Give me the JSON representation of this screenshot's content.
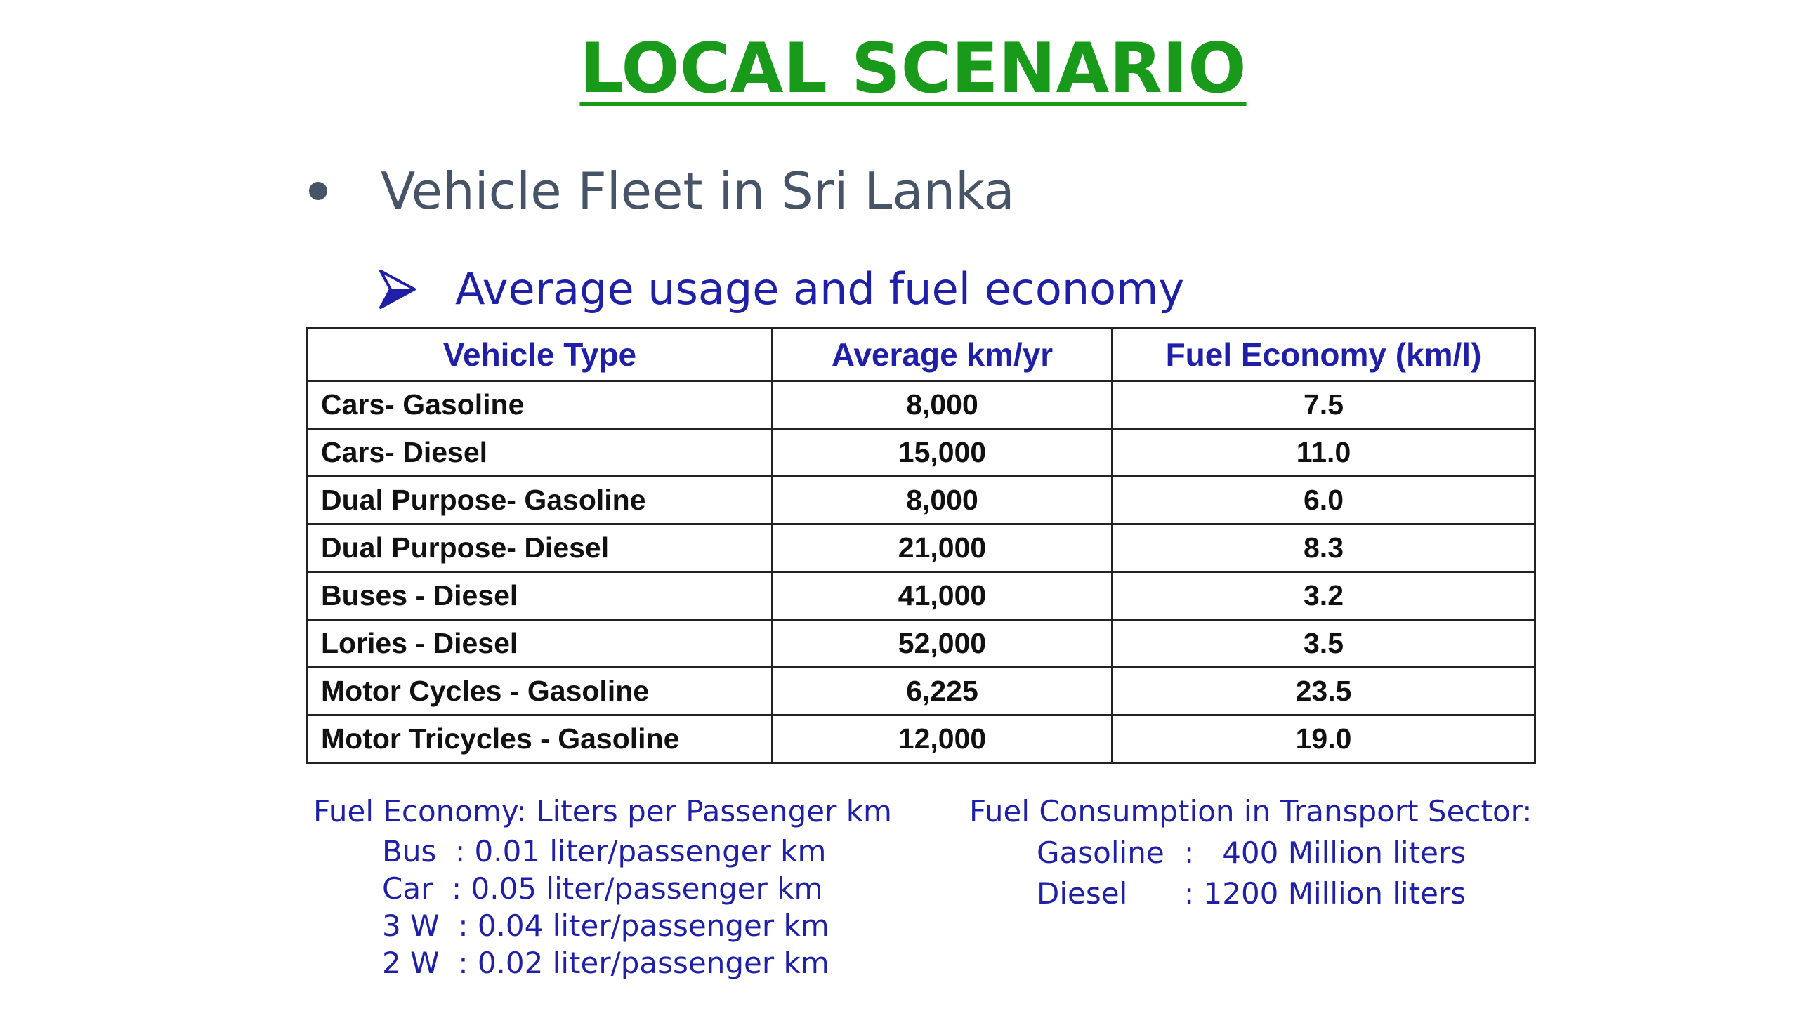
{
  "title": "LOCAL SCENARIO",
  "bullet": "Vehicle Fleet in Sri Lanka",
  "subbullet": "Average usage and fuel economy",
  "table": {
    "headers": [
      "Vehicle Type",
      "Average km/yr",
      "Fuel Economy (km/l)"
    ],
    "rows": [
      [
        "Cars- Gasoline",
        "8,000",
        "7.5"
      ],
      [
        "Cars- Diesel",
        "15,000",
        "11.0"
      ],
      [
        "Dual Purpose- Gasoline",
        "8,000",
        "6.0"
      ],
      [
        "Dual Purpose- Diesel",
        "21,000",
        "8.3"
      ],
      [
        "Buses - Diesel",
        "41,000",
        "3.2"
      ],
      [
        "Lories - Diesel",
        "52,000",
        "3.5"
      ],
      [
        "Motor Cycles - Gasoline",
        "6,225",
        "23.5"
      ],
      [
        "Motor Tricycles - Gasoline",
        "12,000",
        "19.0"
      ]
    ]
  },
  "fuel_economy_note": {
    "heading": "Fuel Economy: Liters per Passenger km",
    "items": [
      {
        "label": "Bus  ",
        "value": ": 0.01 liter/passenger km"
      },
      {
        "label": "Car  ",
        "value": ": 0.05 liter/passenger km"
      },
      {
        "label": "3 W  ",
        "value": ": 0.04 liter/passenger km"
      },
      {
        "label": "2 W  ",
        "value": ": 0.02 liter/passenger km"
      }
    ]
  },
  "fuel_consumption_note": {
    "heading": "Fuel Consumption in Transport Sector:",
    "items": [
      {
        "label": "Gasoline",
        "value": ":   400 Million liters"
      },
      {
        "label": "Diesel",
        "value": ": 1200 Million liters"
      }
    ]
  },
  "colors": {
    "title": "#1a9a1a",
    "bullet": "#475467",
    "accent": "#1f1fa8"
  }
}
